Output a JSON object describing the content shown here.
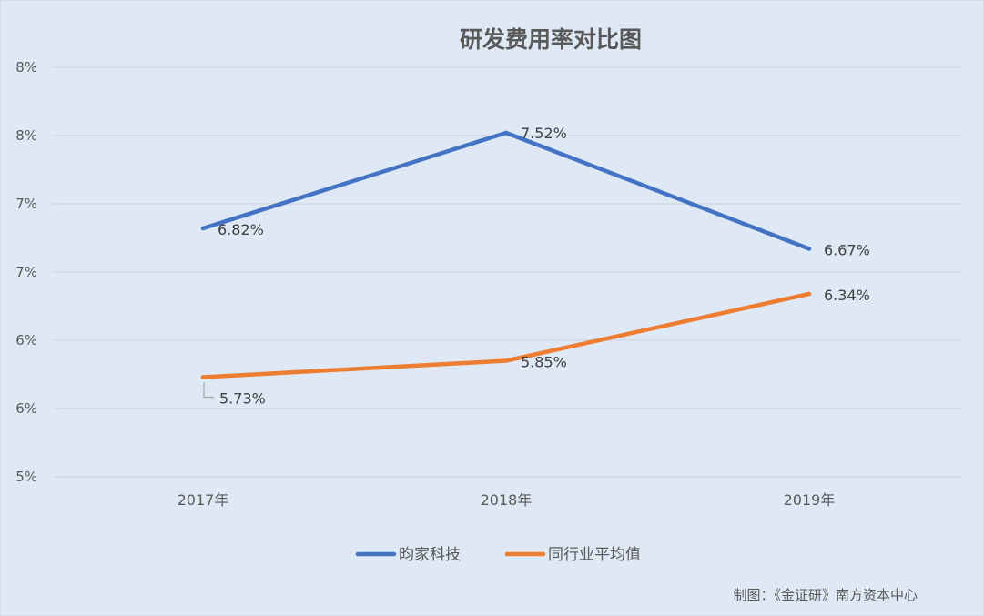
{
  "chart_data": {
    "type": "line",
    "title": "研发费用率对比图",
    "categories": [
      "2017年",
      "2018年",
      "2019年"
    ],
    "y_tick_labels": [
      "5%",
      "6%",
      "6%",
      "7%",
      "7%",
      "8%",
      "8%"
    ],
    "ylim": [
      5.0,
      8.0
    ],
    "grid": true,
    "legend_position": "bottom",
    "series": [
      {
        "name": "昀家科技",
        "color": "#4472c4",
        "values": [
          6.82,
          7.52,
          6.67
        ],
        "labels": [
          "6.82%",
          "7.52%",
          "6.67%"
        ]
      },
      {
        "name": "同行业平均值",
        "color": "#ed7d31",
        "values": [
          5.73,
          5.85,
          6.34
        ],
        "labels": [
          "5.73%",
          "5.85%",
          "6.34%"
        ]
      }
    ],
    "source_note": "制图：《金证研》南方资本中心"
  }
}
